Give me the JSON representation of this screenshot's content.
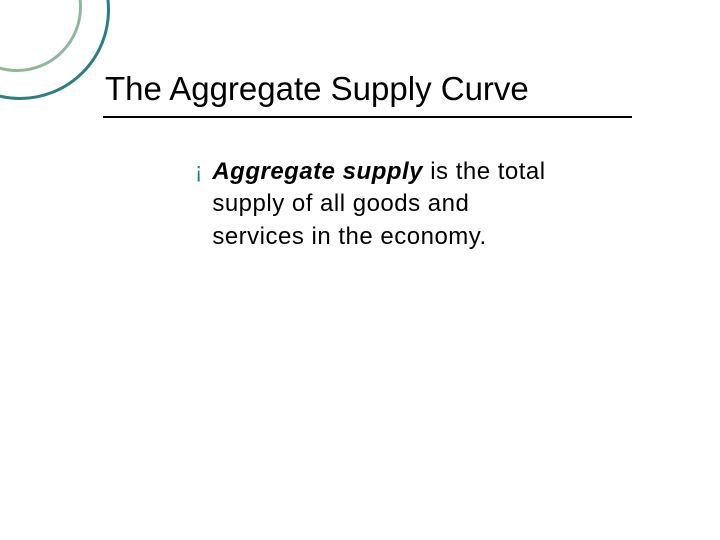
{
  "decoration": {
    "outer_circle_color": "#2a8080",
    "inner_circle_color": "#8fb89a"
  },
  "title": {
    "text": "The Aggregate Supply Curve",
    "fontsize": 33,
    "color": "#000000",
    "rule_color": "#000000"
  },
  "bullet": {
    "marker": "¡",
    "marker_color": "#2a8080",
    "bold_italic_lead": "Aggregate supply",
    "rest": " is the total supply of all goods and services in the economy.",
    "fontsize": 24,
    "text_color": "#000000"
  },
  "background_color": "#ffffff"
}
